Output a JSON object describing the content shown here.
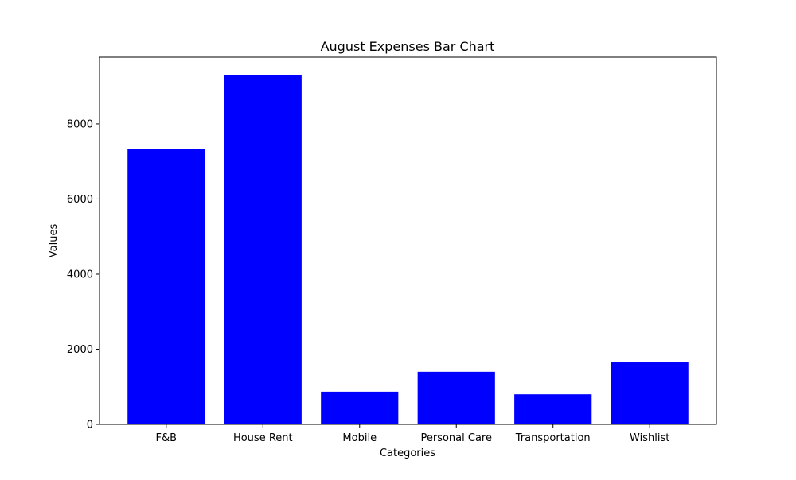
{
  "chart_data": {
    "type": "bar",
    "title": "August Expenses Bar Chart",
    "xlabel": "Categories",
    "ylabel": "Values",
    "categories": [
      "F&B",
      "House Rent",
      "Mobile",
      "Personal Care",
      "Transportation",
      "Wishlist"
    ],
    "values": [
      7340,
      9310,
      870,
      1400,
      800,
      1650
    ],
    "ylim": [
      0,
      9776
    ],
    "yticks": [
      0,
      2000,
      4000,
      6000,
      8000
    ],
    "ytick_labels": [
      "0",
      "2000",
      "4000",
      "6000",
      "8000"
    ],
    "bar_color": "#0000ff",
    "grid": false,
    "legend": "none"
  }
}
